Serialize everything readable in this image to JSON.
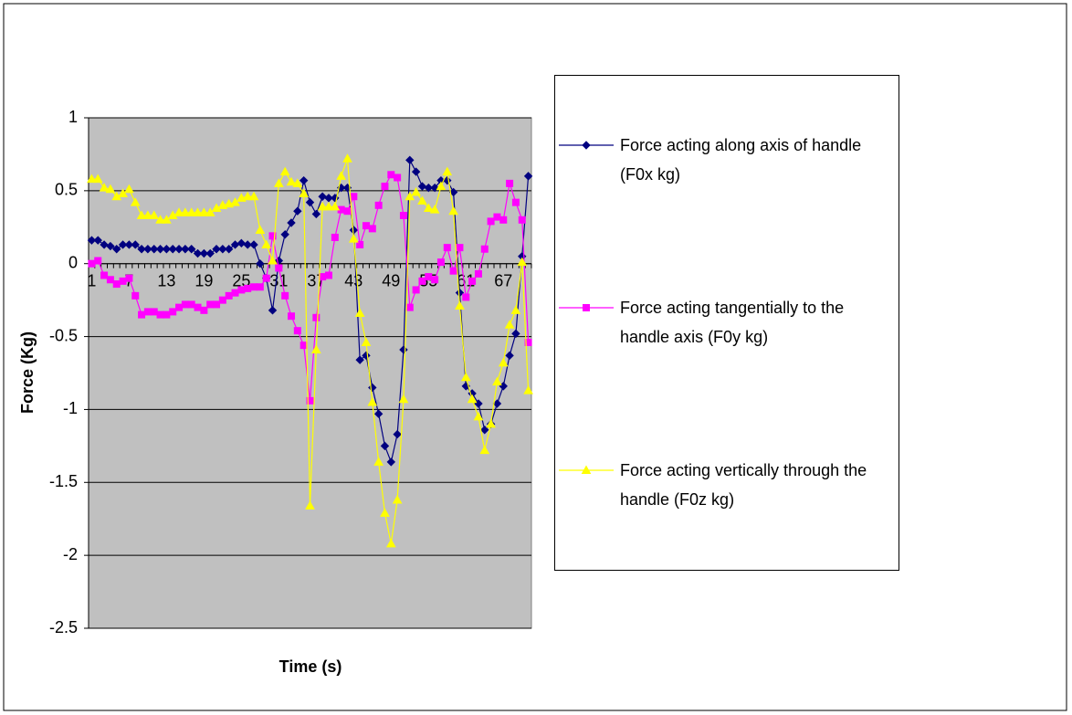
{
  "chart_data": {
    "type": "line",
    "x_label": "Time (s)",
    "y_label": "Force (Kg)",
    "categories": [
      "1",
      null,
      null,
      null,
      null,
      null,
      "7",
      null,
      null,
      null,
      null,
      null,
      "13",
      null,
      null,
      null,
      null,
      null,
      "19",
      null,
      null,
      null,
      null,
      null,
      "25",
      null,
      null,
      null,
      null,
      null,
      "31",
      null,
      null,
      null,
      null,
      null,
      "37",
      null,
      null,
      null,
      null,
      null,
      "43",
      null,
      null,
      null,
      null,
      null,
      "49",
      null,
      null,
      null,
      null,
      null,
      "55",
      null,
      null,
      null,
      null,
      null,
      "61",
      null,
      null,
      null,
      null,
      null,
      "67",
      null,
      null,
      null,
      null
    ],
    "series": [
      {
        "name": "Force acting along axis of handle  (F0x kg)",
        "color": "#000080",
        "marker": "diamond",
        "values": [
          0.16,
          0.16,
          0.13,
          0.12,
          0.1,
          0.13,
          0.13,
          0.13,
          0.1,
          0.1,
          0.1,
          0.1,
          0.1,
          0.1,
          0.1,
          0.1,
          0.1,
          0.07,
          0.07,
          0.07,
          0.1,
          0.1,
          0.1,
          0.13,
          0.14,
          0.13,
          0.13,
          0.0,
          -0.1,
          -0.32,
          0.02,
          0.2,
          0.28,
          0.36,
          0.57,
          0.42,
          0.34,
          0.46,
          0.45,
          0.45,
          0.52,
          0.52,
          0.23,
          -0.66,
          -0.63,
          -0.85,
          -1.03,
          -1.25,
          -1.36,
          -1.17,
          -0.59,
          0.71,
          0.63,
          0.53,
          0.52,
          0.52,
          0.57,
          0.57,
          0.49,
          -0.2,
          -0.84,
          -0.89,
          -0.96,
          -1.14,
          -1.1,
          -0.96,
          -0.84,
          -0.63,
          -0.48,
          0.05,
          0.6
        ]
      },
      {
        "name": "Force acting tangentially to the handle axis (F0y kg)",
        "color": "#ff00ff",
        "marker": "square",
        "values": [
          0.0,
          0.02,
          -0.08,
          -0.11,
          -0.14,
          -0.12,
          -0.1,
          -0.22,
          -0.35,
          -0.33,
          -0.33,
          -0.35,
          -0.35,
          -0.33,
          -0.3,
          -0.28,
          -0.28,
          -0.3,
          -0.32,
          -0.28,
          -0.28,
          -0.25,
          -0.22,
          -0.2,
          -0.18,
          -0.17,
          -0.16,
          -0.16,
          -0.1,
          0.19,
          -0.03,
          -0.22,
          -0.36,
          -0.46,
          -0.56,
          -0.94,
          -0.37,
          -0.09,
          -0.08,
          0.18,
          0.37,
          0.36,
          0.46,
          0.13,
          0.26,
          0.24,
          0.4,
          0.53,
          0.61,
          0.59,
          0.33,
          -0.3,
          -0.18,
          -0.12,
          -0.09,
          -0.11,
          0.01,
          0.11,
          -0.05,
          0.11,
          -0.23,
          -0.12,
          -0.07,
          0.1,
          0.29,
          0.32,
          0.3,
          0.55,
          0.42,
          0.3,
          -0.54
        ]
      },
      {
        "name": "Force acting vertically through the handle (F0z kg)",
        "color": "#ffff00",
        "marker": "triangle",
        "values": [
          0.58,
          0.58,
          0.52,
          0.51,
          0.46,
          0.48,
          0.51,
          0.42,
          0.33,
          0.33,
          0.33,
          0.3,
          0.3,
          0.33,
          0.35,
          0.35,
          0.35,
          0.35,
          0.35,
          0.35,
          0.38,
          0.4,
          0.41,
          0.42,
          0.45,
          0.46,
          0.46,
          0.23,
          0.13,
          0.02,
          0.55,
          0.63,
          0.56,
          0.55,
          0.48,
          -1.66,
          -0.59,
          0.39,
          0.39,
          0.39,
          0.6,
          0.72,
          0.17,
          -0.34,
          -0.54,
          -0.95,
          -1.36,
          -1.71,
          -1.92,
          -1.62,
          -0.93,
          0.46,
          0.49,
          0.43,
          0.38,
          0.37,
          0.53,
          0.63,
          0.36,
          -0.29,
          -0.78,
          -0.93,
          -1.05,
          -1.28,
          -1.1,
          -0.81,
          -0.68,
          -0.42,
          -0.32,
          0.01,
          -0.87
        ]
      }
    ],
    "ylim": [
      -2.5,
      1
    ],
    "yticks": [
      -2.5,
      -2,
      -1.5,
      -1,
      -0.5,
      0,
      0.5,
      1
    ],
    "grid": true,
    "plot_background": "#c0c0c0",
    "legend": "right"
  }
}
